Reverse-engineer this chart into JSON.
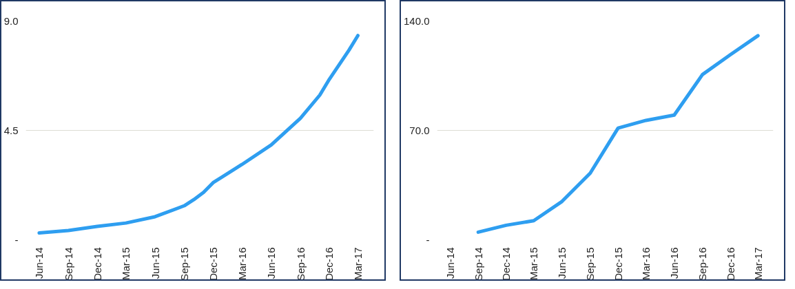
{
  "chart_data": [
    {
      "type": "line",
      "x": [
        "2014-06",
        "2014-09",
        "2014-12",
        "2015-03",
        "2015-06",
        "2015-09",
        "2015-10",
        "2015-11",
        "2015-12",
        "2016-03",
        "2016-06",
        "2016-09",
        "2016-11",
        "2016-12",
        "2017-02",
        "2017-03"
      ],
      "series": [
        {
          "color": "#2e9ef0",
          "values": [
            0.28,
            0.38,
            0.55,
            0.69,
            0.95,
            1.4,
            1.65,
            1.95,
            2.35,
            3.1,
            3.9,
            5.0,
            5.95,
            6.6,
            7.8,
            8.4
          ]
        }
      ],
      "xlim": [
        "2014-04-20",
        "2017-04-20"
      ],
      "ylim": [
        0,
        9
      ],
      "xticks": [
        {
          "value": "2014-06",
          "label": "Jun-14"
        },
        {
          "value": "2014-09",
          "label": "Sep-14"
        },
        {
          "value": "2014-12",
          "label": "Dec-14"
        },
        {
          "value": "2015-03",
          "label": "Mar-15"
        },
        {
          "value": "2015-06",
          "label": "Jun-15"
        },
        {
          "value": "2015-09",
          "label": "Sep-15"
        },
        {
          "value": "2015-12",
          "label": "Dec-15"
        },
        {
          "value": "2016-03",
          "label": "Mar-16"
        },
        {
          "value": "2016-06",
          "label": "Jun-16"
        },
        {
          "value": "2016-09",
          "label": "Sep-16"
        },
        {
          "value": "2016-12",
          "label": "Dec-16"
        },
        {
          "value": "2017-03",
          "label": "Mar-17"
        }
      ],
      "yticks": [
        {
          "value": 0,
          "label": "-"
        },
        4.5,
        {
          "value": 9,
          "label": "9.0"
        }
      ],
      "grid": "y",
      "marker": "none",
      "line_style": "solid"
    },
    {
      "type": "line",
      "x": [
        "2014-09",
        "2014-12",
        "2015-03",
        "2015-06",
        "2015-09",
        "2015-12",
        "2016-03",
        "2016-06",
        "2016-09",
        "2016-12",
        "2017-03"
      ],
      "series": [
        {
          "color": "#2e9ef0",
          "values": [
            4.9,
            9.3,
            12.2,
            24.5,
            42.6,
            71.5,
            76.4,
            79.8,
            105.7,
            118.4,
            130.6
          ]
        }
      ],
      "xlim": [
        "2014-04-20",
        "2017-04-20"
      ],
      "ylim": [
        0,
        140
      ],
      "xticks": [
        {
          "value": "2014-06",
          "label": "Jun-14"
        },
        {
          "value": "2014-09",
          "label": "Sep-14"
        },
        {
          "value": "2014-12",
          "label": "Dec-14"
        },
        {
          "value": "2015-03",
          "label": "Mar-15"
        },
        {
          "value": "2015-06",
          "label": "Jun-15"
        },
        {
          "value": "2015-09",
          "label": "Sep-15"
        },
        {
          "value": "2015-12",
          "label": "Dec-15"
        },
        {
          "value": "2016-03",
          "label": "Mar-16"
        },
        {
          "value": "2016-06",
          "label": "Jun-16"
        },
        {
          "value": "2016-09",
          "label": "Sep-16"
        },
        {
          "value": "2016-12",
          "label": "Dec-16"
        },
        {
          "value": "2017-03",
          "label": "Mar-17"
        }
      ],
      "yticks": [
        {
          "value": 0,
          "label": "-"
        },
        {
          "value": 70,
          "label": "70.0"
        },
        {
          "value": 140,
          "label": "140.0"
        }
      ],
      "grid": "y",
      "marker": "none",
      "line_style": "solid"
    }
  ]
}
